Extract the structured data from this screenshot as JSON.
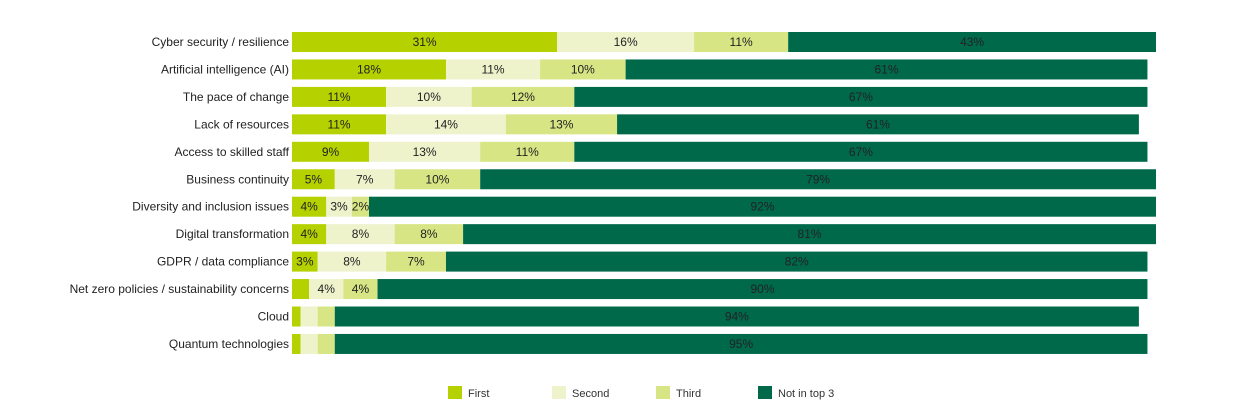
{
  "chart_data": {
    "type": "bar",
    "orientation": "horizontal",
    "stacked": true,
    "categories": [
      "Cyber security / resilience",
      "Artificial intelligence (AI)",
      "The pace of change",
      "Lack of resources",
      "Access to skilled staff",
      "Business continuity",
      "Diversity and inclusion issues",
      "Digital transformation",
      "GDPR / data compliance",
      "Net zero policies / sustainability concerns",
      "Cloud",
      "Quantum technologies"
    ],
    "series": [
      {
        "name": "First",
        "color": "#b5d100",
        "values": [
          31,
          18,
          11,
          11,
          9,
          5,
          4,
          4,
          3,
          2,
          1,
          1
        ],
        "labels": [
          "31%",
          "18%",
          "11%",
          "11%",
          "9%",
          "5%",
          "4%",
          "4%",
          "3%",
          "",
          "",
          ""
        ]
      },
      {
        "name": "Second",
        "color": "#eef3cc",
        "values": [
          16,
          11,
          10,
          14,
          13,
          7,
          3,
          8,
          8,
          4,
          2,
          2
        ],
        "labels": [
          "16%",
          "11%",
          "10%",
          "14%",
          "13%",
          "7%",
          "3%",
          "8%",
          "8%",
          "4%",
          "",
          ""
        ]
      },
      {
        "name": "Third",
        "color": "#d8e584",
        "values": [
          11,
          10,
          12,
          13,
          11,
          10,
          2,
          8,
          7,
          4,
          2,
          2
        ],
        "labels": [
          "11%",
          "10%",
          "12%",
          "13%",
          "11%",
          "10%",
          "2%",
          "8%",
          "7%",
          "4%",
          "",
          ""
        ]
      },
      {
        "name": "Not in top 3",
        "color": "#00694a",
        "values": [
          43,
          61,
          67,
          61,
          67,
          79,
          92,
          81,
          82,
          90,
          94,
          95
        ],
        "labels": [
          "43%",
          "61%",
          "67%",
          "61%",
          "67%",
          "79%",
          "92%",
          "81%",
          "82%",
          "90%",
          "94%",
          "95%"
        ]
      }
    ],
    "xlim": [
      0,
      101
    ],
    "grid": false,
    "legend_position": "bottom-center"
  }
}
